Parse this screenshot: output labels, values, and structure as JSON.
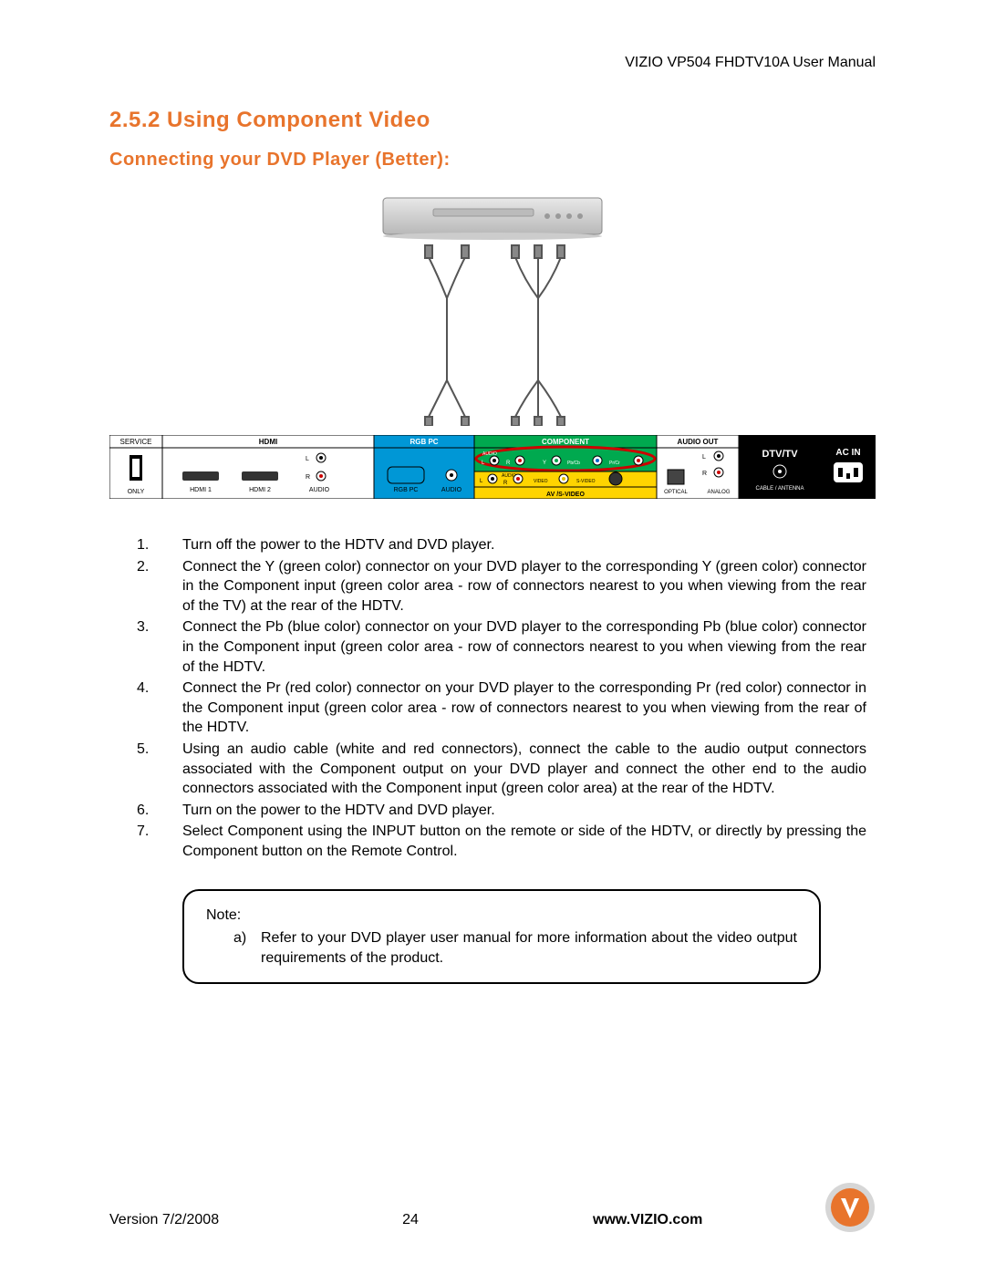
{
  "header": {
    "manual_title": "VIZIO VP504 FHDTV10A User Manual"
  },
  "headings": {
    "section": "2.5.2 Using Component Video",
    "sub": "Connecting your DVD Player (Better):",
    "color": "#e8742c"
  },
  "panel": {
    "sections": {
      "service": {
        "label": "SERVICE",
        "only": "ONLY",
        "bg": "#ffffff",
        "text": "#000000"
      },
      "hdmi": {
        "label": "HDMI",
        "bg": "#ffffff",
        "text": "#000000",
        "ports": [
          "HDMI 1",
          "HDMI 2"
        ],
        "audio": "AUDIO",
        "l": "L",
        "r": "R"
      },
      "rgbpc": {
        "label": "RGB PC",
        "bg": "#0097d6",
        "text": "#ffffff",
        "port": "RGB PC",
        "audio": "AUDIO"
      },
      "component": {
        "label": "COMPONENT",
        "bg": "#00a94f",
        "text": "#ffffff",
        "audio": "AUDIO",
        "l": "L",
        "r": "R",
        "y": "Y",
        "pb": "Pb/Cb",
        "pr": "Pr/Cr",
        "y_color": "#00a94f",
        "pb_color": "#0066cc",
        "pr_color": "#cc0000",
        "av_label": "AV /S-VIDEO",
        "av_bg": "#ffd400",
        "video": "VIDEO",
        "svideo": "S-VIDEO",
        "highlight": "#cc0000"
      },
      "audioout": {
        "label": "AUDIO OUT",
        "bg": "#ffffff",
        "text": "#000000",
        "l": "L",
        "r": "R",
        "optical": "OPTICAL",
        "analog": "ANALOG"
      },
      "dtv": {
        "label": "DTV/TV",
        "sub": "CABLE / ANTENNA",
        "bg": "#000000",
        "text": "#ffffff"
      },
      "acin": {
        "label": "AC IN",
        "bg": "#000000",
        "text": "#ffffff"
      }
    }
  },
  "instructions": [
    {
      "n": "1.",
      "t": "Turn off the power to the HDTV and DVD player."
    },
    {
      "n": "2.",
      "t": "Connect the Y (green color) connector on your DVD player to the corresponding Y (green color) connector in the Component input (green color area - row of connectors nearest to you when viewing from the rear of the TV) at the rear of the HDTV."
    },
    {
      "n": "3.",
      "t": "Connect the Pb (blue color) connector on your DVD player to the corresponding Pb (blue color) connector in the Component input (green color area - row of connectors nearest to you when viewing from the rear of the HDTV."
    },
    {
      "n": "4.",
      "t": "Connect the Pr (red color) connector on your DVD player to the corresponding Pr (red color) connector in the Component input (green color area - row of connectors nearest to you when viewing from the rear of the HDTV."
    },
    {
      "n": "5.",
      "t": "Using an audio cable (white and red connectors), connect the cable to the audio output connectors associated with the Component output on your DVD player and connect the other end to the audio connectors associated with the Component input (green color area) at the rear of the HDTV."
    },
    {
      "n": "6.",
      "t": "Turn on the power to the HDTV and DVD player."
    },
    {
      "n": "7.",
      "t": "Select Component using the INPUT button on the remote or side of the HDTV, or directly by pressing the Component button on the Remote Control."
    }
  ],
  "note": {
    "label": "Note:",
    "item_letter": "a)",
    "item_text": "Refer to your DVD player user manual for more information about the video output requirements of the product."
  },
  "footer": {
    "version": "Version 7/2/2008",
    "page": "24",
    "site": "www.VIZIO.com",
    "logo_colors": {
      "outer": "#d6d6d6",
      "inner": "#e8742c",
      "v": "#ffffff"
    }
  }
}
